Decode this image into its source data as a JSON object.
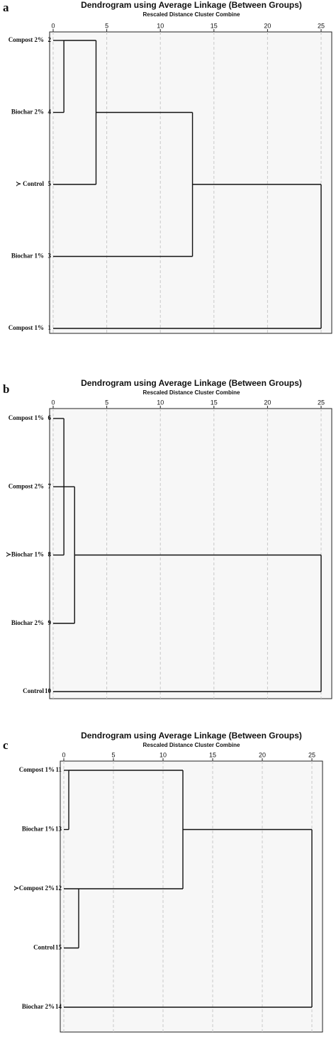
{
  "chart_data": [
    {
      "type": "dendrogram",
      "panel_label": "a",
      "title": "Dendrogram using Average Linkage (Between Groups)",
      "subtitle": "Rescaled Distance Cluster Combine",
      "xlim": [
        0,
        25
      ],
      "xticks": [
        0,
        5,
        10,
        15,
        20,
        25
      ],
      "grid": true,
      "leaves": [
        "Compost 2%",
        "Biochar 2%",
        "≻  Control",
        "Biochar 1%",
        "Compost 1%"
      ],
      "leaf_ids": [
        2,
        4,
        5,
        3,
        1
      ],
      "merges": [
        {
          "nodes": [
            0,
            1
          ],
          "distance": 1
        },
        {
          "nodes": [
            5,
            2
          ],
          "distance": 4
        },
        {
          "nodes": [
            6,
            3
          ],
          "distance": 13
        },
        {
          "nodes": [
            7,
            4
          ],
          "distance": 25
        }
      ]
    },
    {
      "type": "dendrogram",
      "panel_label": "b",
      "title": "Dendrogram using Average Linkage (Between Groups)",
      "subtitle": "Rescaled Distance Cluster Combine",
      "xlim": [
        0,
        25
      ],
      "xticks": [
        0,
        5,
        10,
        15,
        20,
        25
      ],
      "grid": true,
      "leaves": [
        "Compost 1%",
        "Compost 2%",
        "≻Biochar 1%",
        "Biochar 2%",
        "Control"
      ],
      "leaf_ids": [
        6,
        7,
        8,
        9,
        10
      ],
      "merges": [
        {
          "nodes": [
            0,
            2
          ],
          "distance": 1
        },
        {
          "nodes": [
            1,
            5
          ],
          "distance": 1
        },
        {
          "nodes": [
            6,
            3
          ],
          "distance": 2
        },
        {
          "nodes": [
            7,
            4
          ],
          "distance": 25
        }
      ]
    },
    {
      "type": "dendrogram",
      "panel_label": "c",
      "title": "Dendrogram using Average Linkage (Between Groups)",
      "subtitle": "Rescaled Distance Cluster Combine",
      "xlim": [
        0,
        25
      ],
      "xticks": [
        0,
        5,
        10,
        15,
        20,
        25
      ],
      "grid": true,
      "leaves": [
        "Compost 1%",
        "Biochar 1%",
        "≻Compost 2%",
        "Control",
        "Biochar 2%"
      ],
      "leaf_ids": [
        11,
        13,
        12,
        15,
        14
      ],
      "merges": [
        {
          "nodes": [
            0,
            1
          ],
          "distance": 0.5
        },
        {
          "nodes": [
            2,
            3
          ],
          "distance": 1.5
        },
        {
          "nodes": [
            5,
            6
          ],
          "distance": 12
        },
        {
          "nodes": [
            7,
            4
          ],
          "distance": 25
        }
      ]
    }
  ]
}
